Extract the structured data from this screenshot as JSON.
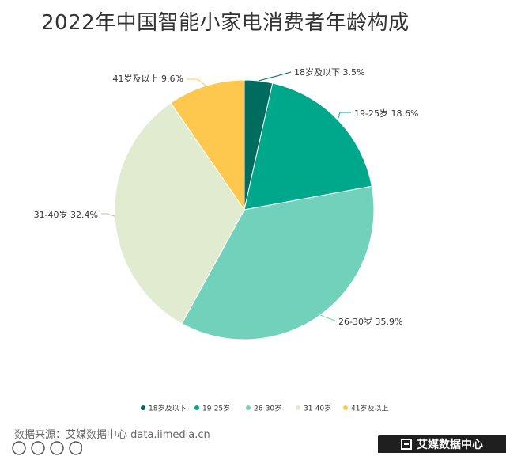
{
  "chart_data": {
    "type": "pie",
    "title": "2022年中国智能小家电消费者年龄构成",
    "categories": [
      "18岁及以下",
      "19-25岁",
      "26-30岁",
      "31-40岁",
      "41岁及以上"
    ],
    "values": [
      3.5,
      18.6,
      35.9,
      32.4,
      9.6
    ],
    "value_labels": [
      "3.5%",
      "18.6%",
      "35.9%",
      "32.4%",
      "9.6%"
    ],
    "colors": [
      "#006b5f",
      "#00a88b",
      "#72d1bb",
      "#e1ebcf",
      "#fdc84d"
    ],
    "legend_position": "bottom"
  },
  "footer": {
    "source": "数据来源：艾媒数据中心 data.iimedia.cn",
    "brand": "艾媒数据中心"
  }
}
